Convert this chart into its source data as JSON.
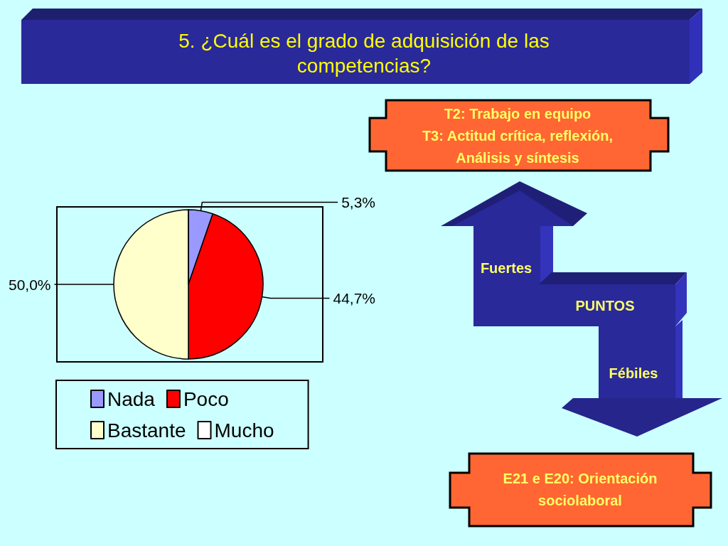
{
  "chart_data": {
    "type": "pie",
    "title": "5. ¿Cuál es el grado de adquisición de las competencias?",
    "categories": [
      "Nada",
      "Poco",
      "Bastante",
      "Mucho"
    ],
    "values": [
      5.3,
      44.7,
      50.0,
      0
    ],
    "value_labels": [
      "5,3%",
      "44,7%",
      "50,0%",
      null
    ],
    "colors": [
      "#9999ff",
      "#ff0000",
      "#ffffcc",
      "#ffffff"
    ],
    "legend": "bottom",
    "annotations": [
      "T2: Trabajo en equipo\nT3: Actitud crítica, reflexión,\nAnálisis y síntesis",
      "Fuertes",
      "PUNTOS",
      "Fébiles",
      "E21 e E20: Orientación\nsociolaboral"
    ]
  }
}
